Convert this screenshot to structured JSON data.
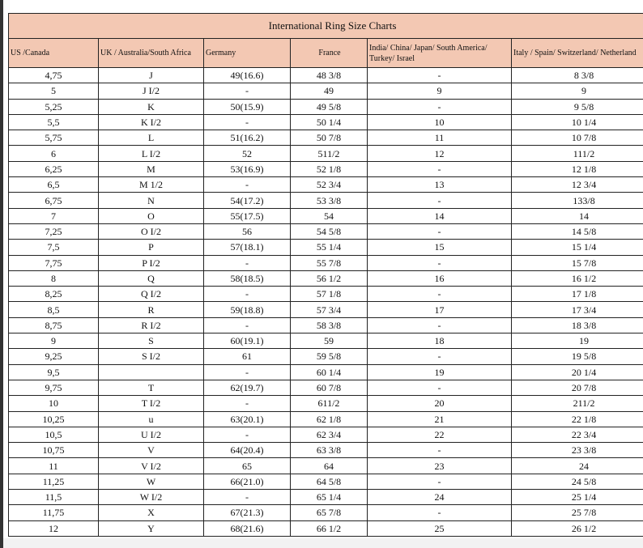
{
  "title": "International Ring Size Charts",
  "colors": {
    "header_bg": "#f3c8b3"
  },
  "columns": [
    "US /Canada",
    "UK /  Australia/South Africa",
    "Germany",
    "France",
    "India/ China/ Japan/ South America/ Turkey/ Israel",
    "Italy /  Spain/ Switzerland/ Netherland"
  ],
  "rows": [
    [
      "4,75",
      "J",
      "49(16.6)",
      "48 3/8",
      "-",
      "8 3/8"
    ],
    [
      "5",
      "J I/2",
      "-",
      "49",
      "9",
      "9"
    ],
    [
      "5,25",
      "K",
      "50(15.9)",
      "49 5/8",
      "-",
      "9 5/8"
    ],
    [
      "5,5",
      "K I/2",
      "-",
      "50 1/4",
      "10",
      "10 1/4"
    ],
    [
      "5,75",
      "L",
      "51(16.2)",
      "50 7/8",
      "11",
      "10 7/8"
    ],
    [
      "6",
      "L I/2",
      "52",
      "511/2",
      "12",
      "111/2"
    ],
    [
      "6,25",
      "M",
      "53(16.9)",
      "52 1/8",
      "-",
      "12 1/8"
    ],
    [
      "6,5",
      "M 1/2",
      "-",
      "52 3/4",
      "13",
      "12 3/4"
    ],
    [
      "6,75",
      "N",
      "54(17.2)",
      "53 3/8",
      "-",
      "133/8"
    ],
    [
      "7",
      "O",
      "55(17.5)",
      "54",
      "14",
      "14"
    ],
    [
      "7,25",
      "O I/2",
      "56",
      "54 5/8",
      "-",
      "14 5/8"
    ],
    [
      "7,5",
      "P",
      "57(18.1)",
      "55 1/4",
      "15",
      "15 1/4"
    ],
    [
      "7,75",
      "P I/2",
      "-",
      "55 7/8",
      "-",
      "15 7/8"
    ],
    [
      "8",
      "Q",
      "58(18.5)",
      "56 1/2",
      "16",
      "16 1/2"
    ],
    [
      "8,25",
      "Q I/2",
      "-",
      "57 1/8",
      "-",
      "17 1/8"
    ],
    [
      "8,5",
      "R",
      "59(18.8)",
      "57 3/4",
      "17",
      "17 3/4"
    ],
    [
      "8,75",
      "R I/2",
      "-",
      "58 3/8",
      "-",
      "18 3/8"
    ],
    [
      "9",
      "S",
      "60(19.1)",
      "59",
      "18",
      "19"
    ],
    [
      "9,25",
      "S I/2",
      "61",
      "59 5/8",
      "-",
      "19 5/8"
    ],
    [
      "9,5",
      "",
      "-",
      "60 1/4",
      "19",
      "20 1/4"
    ],
    [
      "9,75",
      "T",
      "62(19.7)",
      "60 7/8",
      "-",
      "20 7/8"
    ],
    [
      "10",
      "T I/2",
      "-",
      "611/2",
      "20",
      "211/2"
    ],
    [
      "10,25",
      "u",
      "63(20.1)",
      "62 1/8",
      "21",
      "22 1/8"
    ],
    [
      "10,5",
      "U I/2",
      "-",
      "62 3/4",
      "22",
      "22 3/4"
    ],
    [
      "10,75",
      "V",
      "64(20.4)",
      "63 3/8",
      "-",
      "23 3/8"
    ],
    [
      "11",
      "V I/2",
      "65",
      "64",
      "23",
      "24"
    ],
    [
      "11,25",
      "W",
      "66(21.0)",
      "64 5/8",
      "-",
      "24 5/8"
    ],
    [
      "11,5",
      "W I/2",
      "-",
      "65 1/4",
      "24",
      "25 1/4"
    ],
    [
      "11,75",
      "X",
      "67(21.3)",
      "65 7/8",
      "-",
      "25 7/8"
    ],
    [
      "12",
      "Y",
      "68(21.6)",
      "66 1/2",
      "25",
      "26 1/2"
    ]
  ]
}
